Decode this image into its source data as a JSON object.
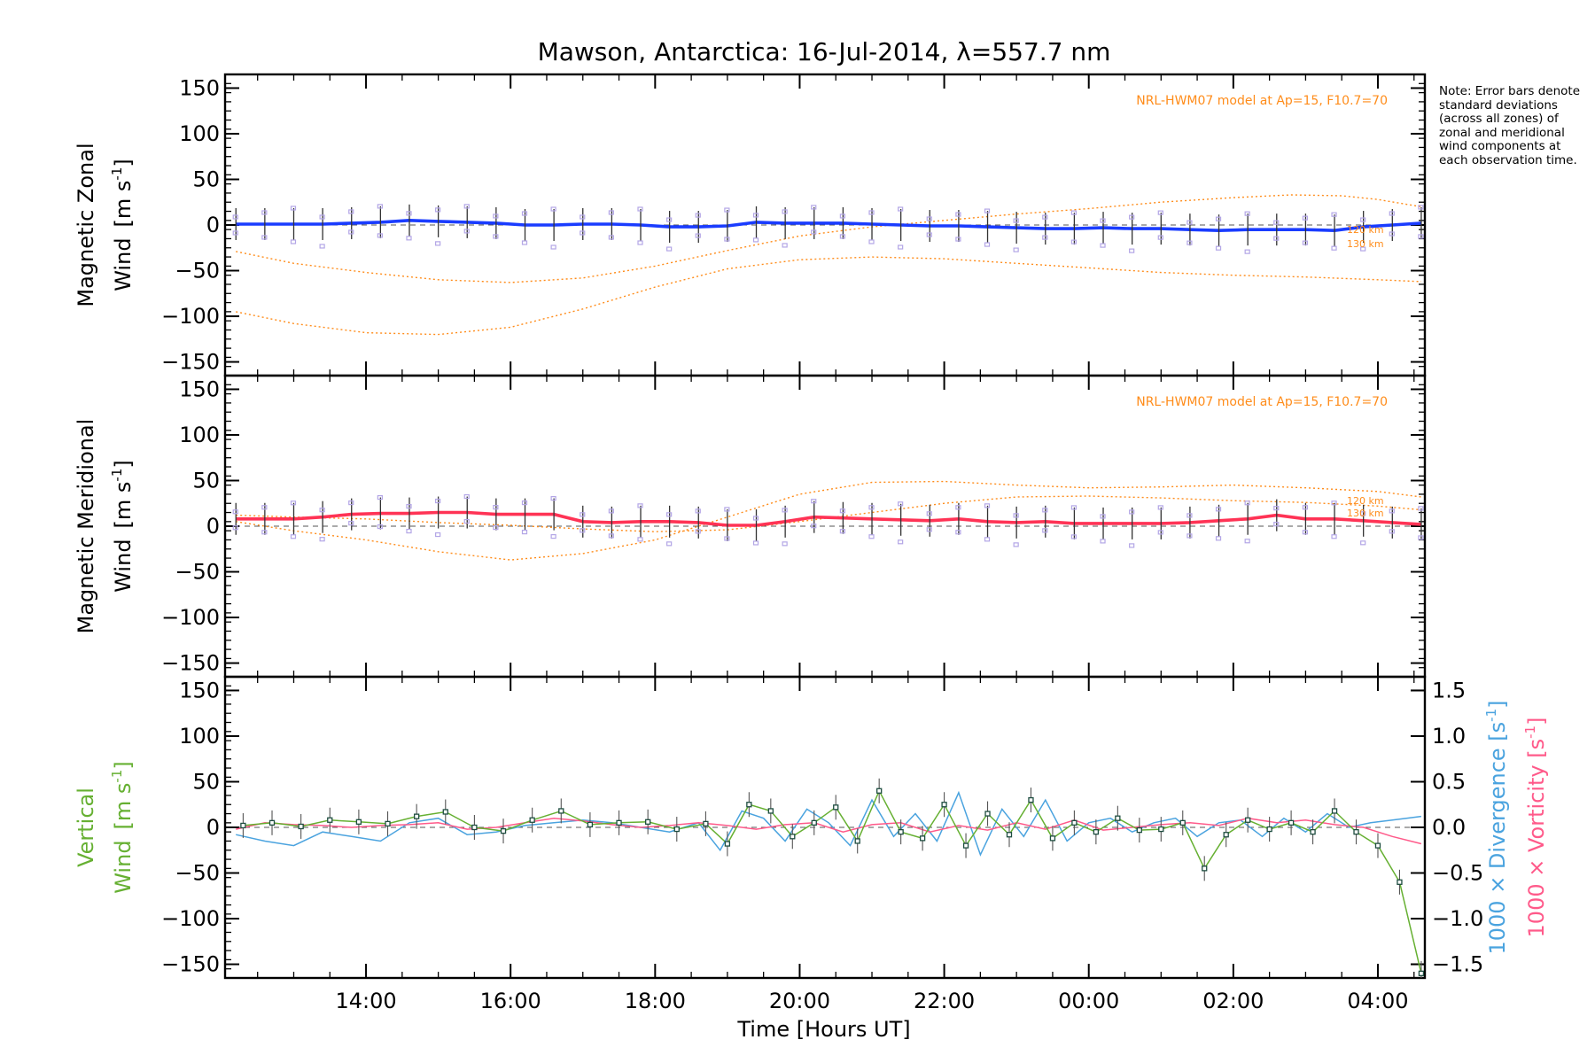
{
  "chart_data": [
    {
      "type": "line",
      "title": "Mawson, Antarctica: 16-Jul-2014, λ=557.7 nm",
      "ylabel": [
        "Magnetic Zonal",
        "Wind"
      ],
      "yunit_base": "[m s",
      "yunit_sup": "-1",
      "yunit_close": "]",
      "ylim": [
        -165,
        165
      ],
      "yticks": [
        -150,
        -100,
        -50,
        0,
        50,
        100,
        150
      ],
      "model_label": "NRL-HWM07 model at Ap=15, F10.7=70",
      "model_altitudes": [
        "120 km",
        "130 km"
      ],
      "series": [
        {
          "name": "mean",
          "color": "#1a3cff",
          "x": [
            12.2,
            12.6,
            13.0,
            13.4,
            13.8,
            14.2,
            14.6,
            15.0,
            15.4,
            15.8,
            16.2,
            16.6,
            17.0,
            17.4,
            17.8,
            18.2,
            18.6,
            19.0,
            19.4,
            19.8,
            20.2,
            20.6,
            21.0,
            21.4,
            21.8,
            22.2,
            22.6,
            23.0,
            23.4,
            23.8,
            24.2,
            24.6,
            25.0,
            25.4,
            25.8,
            26.2,
            26.6,
            27.0,
            27.4,
            27.8,
            28.2,
            28.6
          ],
          "y": [
            1,
            1,
            1,
            1,
            2,
            3,
            5,
            4,
            3,
            2,
            0,
            0,
            1,
            1,
            0,
            -2,
            -2,
            -1,
            3,
            2,
            2,
            2,
            1,
            0,
            -1,
            -1,
            -2,
            -3,
            -4,
            -4,
            -3,
            -4,
            -4,
            -5,
            -6,
            -5,
            -5,
            -5,
            -6,
            -2,
            0,
            2
          ]
        },
        {
          "name": "model 120 km",
          "color": "#ff8c1a",
          "x": [
            12.2,
            13.0,
            14.0,
            15.0,
            16.0,
            17.0,
            18.0,
            19.0,
            20.0,
            21.0,
            22.0,
            23.0,
            24.0,
            25.0,
            26.0,
            26.8,
            27.5,
            28.0,
            28.6
          ],
          "y": [
            -29,
            -42,
            -52,
            -60,
            -63,
            -58,
            -45,
            -28,
            -12,
            -2,
            5,
            12,
            18,
            25,
            30,
            33,
            32,
            28,
            20
          ]
        },
        {
          "name": "model 130 km",
          "color": "#ff8c1a",
          "x": [
            12.2,
            13.0,
            14.0,
            15.0,
            16.0,
            17.0,
            18.0,
            19.0,
            20.0,
            21.0,
            22.0,
            23.0,
            24.0,
            25.0,
            26.0,
            27.0,
            28.0,
            28.6
          ],
          "y": [
            -95,
            -108,
            -118,
            -120,
            -112,
            -92,
            -68,
            -48,
            -38,
            -35,
            -37,
            -42,
            -47,
            -52,
            -55,
            -57,
            -60,
            -62
          ]
        }
      ]
    },
    {
      "type": "line",
      "ylabel": [
        "Magnetic Meridional",
        "Wind"
      ],
      "yunit_base": "[m s",
      "yunit_sup": "-1",
      "yunit_close": "]",
      "ylim": [
        -165,
        165
      ],
      "yticks": [
        -150,
        -100,
        -50,
        0,
        50,
        100,
        150
      ],
      "model_label": "NRL-HWM07 model at Ap=15, F10.7=70",
      "model_altitudes": [
        "120 km",
        "130 km"
      ],
      "series": [
        {
          "name": "mean",
          "color": "#ff3355",
          "x": [
            12.2,
            12.6,
            13.0,
            13.4,
            13.8,
            14.2,
            14.6,
            15.0,
            15.4,
            15.8,
            16.2,
            16.6,
            17.0,
            17.4,
            17.8,
            18.2,
            18.6,
            19.0,
            19.4,
            19.8,
            20.2,
            20.6,
            21.0,
            21.4,
            21.8,
            22.2,
            22.6,
            23.0,
            23.4,
            23.8,
            24.2,
            24.6,
            25.0,
            25.4,
            25.8,
            26.2,
            26.6,
            27.0,
            27.4,
            27.8,
            28.2,
            28.6
          ],
          "y": [
            8,
            8,
            8,
            10,
            13,
            14,
            14,
            15,
            15,
            13,
            13,
            13,
            5,
            4,
            5,
            5,
            4,
            1,
            1,
            5,
            10,
            9,
            8,
            7,
            6,
            8,
            5,
            4,
            5,
            3,
            3,
            3,
            3,
            4,
            6,
            8,
            12,
            8,
            8,
            6,
            4,
            2
          ]
        },
        {
          "name": "model 120 km",
          "color": "#ff8c1a",
          "x": [
            12.2,
            13.0,
            14.0,
            15.0,
            16.0,
            17.0,
            18.0,
            19.0,
            20.0,
            21.0,
            22.0,
            23.0,
            24.0,
            25.0,
            26.0,
            27.0,
            28.0,
            28.6
          ],
          "y": [
            5,
            -5,
            -15,
            -28,
            -37,
            -30,
            -15,
            10,
            35,
            48,
            49,
            45,
            42,
            43,
            45,
            42,
            38,
            32
          ]
        },
        {
          "name": "model 130 km",
          "color": "#ff8c1a",
          "x": [
            12.2,
            13.0,
            14.0,
            15.0,
            16.0,
            17.0,
            18.0,
            19.0,
            20.0,
            21.0,
            22.0,
            23.0,
            24.0,
            25.0,
            26.0,
            27.0,
            28.0,
            28.6
          ],
          "y": [
            12,
            10,
            8,
            4,
            1,
            -3,
            -6,
            -4,
            5,
            15,
            25,
            32,
            33,
            31,
            28,
            26,
            22,
            18
          ]
        }
      ]
    },
    {
      "type": "line",
      "ylabel": [
        "Vertical",
        "Wind"
      ],
      "yunit_base": "[m s",
      "yunit_sup": "-1",
      "yunit_close": "]",
      "ylim": [
        -165,
        165
      ],
      "yticks": [
        -150,
        -100,
        -50,
        0,
        50,
        100,
        150
      ],
      "y2lim": [
        -1.65,
        1.65
      ],
      "y2ticks": [
        -1.5,
        -1.0,
        -0.5,
        0.0,
        0.5,
        1.0,
        1.5
      ],
      "y2labels": [
        "−1.5",
        "−1.0",
        "−0.5",
        "0.0",
        "0.5",
        "1.0",
        "1.5"
      ],
      "y2label_div_base": "1000 × Divergence [s",
      "y2label_vort_base": "1000 × Vorticity [s",
      "y2label_sup": "-1",
      "y2label_close": "]",
      "xlabel": "Time [Hours UT]",
      "xticks": [
        14,
        16,
        18,
        20,
        22,
        24,
        26,
        28
      ],
      "xticklabels": [
        "14:00",
        "16:00",
        "18:00",
        "20:00",
        "22:00",
        "00:00",
        "02:00",
        "04:00"
      ],
      "xlim": [
        12.05,
        28.65
      ],
      "series": [
        {
          "name": "vertical wind",
          "color": "#66b032",
          "x": [
            12.3,
            12.7,
            13.1,
            13.5,
            13.9,
            14.3,
            14.7,
            15.1,
            15.5,
            15.9,
            16.3,
            16.7,
            17.1,
            17.5,
            17.9,
            18.3,
            18.7,
            19.0,
            19.3,
            19.6,
            19.9,
            20.2,
            20.5,
            20.8,
            21.1,
            21.4,
            21.7,
            22.0,
            22.3,
            22.6,
            22.9,
            23.2,
            23.5,
            23.8,
            24.1,
            24.4,
            24.7,
            25.0,
            25.3,
            25.6,
            25.9,
            26.2,
            26.5,
            26.8,
            27.1,
            27.4,
            27.7,
            28.0,
            28.3,
            28.6
          ],
          "y": [
            2,
            5,
            1,
            8,
            6,
            4,
            12,
            17,
            0,
            -4,
            8,
            18,
            3,
            5,
            6,
            -2,
            4,
            -18,
            25,
            18,
            -10,
            5,
            22,
            -15,
            40,
            -5,
            -12,
            25,
            -20,
            15,
            -8,
            30,
            -12,
            5,
            -5,
            10,
            -3,
            -2,
            5,
            -45,
            -8,
            8,
            -2,
            5,
            -5,
            18,
            -5,
            -20,
            -60,
            -160
          ]
        },
        {
          "name": "1000 x divergence",
          "color": "#4aa3df",
          "x": [
            12.2,
            12.6,
            13.0,
            13.4,
            13.8,
            14.2,
            14.6,
            15.0,
            15.4,
            15.8,
            16.2,
            16.6,
            17.0,
            17.4,
            17.8,
            18.2,
            18.6,
            18.9,
            19.2,
            19.5,
            19.8,
            20.1,
            20.4,
            20.7,
            21.0,
            21.3,
            21.6,
            21.9,
            22.2,
            22.5,
            22.8,
            23.1,
            23.4,
            23.7,
            24.0,
            24.3,
            24.6,
            24.9,
            25.2,
            25.5,
            25.8,
            26.1,
            26.4,
            26.7,
            27.0,
            27.3,
            27.6,
            27.9,
            28.2,
            28.6
          ],
          "y": [
            -0.08,
            -0.15,
            -0.2,
            -0.05,
            -0.1,
            -0.15,
            0.05,
            0.1,
            -0.08,
            -0.05,
            0.02,
            0.05,
            0.08,
            0.05,
            0.0,
            -0.05,
            0.05,
            -0.25,
            0.18,
            0.1,
            -0.15,
            0.2,
            0.05,
            -0.2,
            0.3,
            -0.1,
            0.15,
            -0.15,
            0.38,
            -0.3,
            0.2,
            -0.1,
            0.3,
            -0.15,
            0.05,
            0.1,
            -0.05,
            0.05,
            0.1,
            -0.1,
            0.05,
            0.08,
            -0.1,
            0.1,
            -0.05,
            0.15,
            0.0,
            0.05,
            0.08,
            0.12
          ]
        },
        {
          "name": "1000 x vorticity",
          "color": "#ff5a8a",
          "x": [
            12.2,
            12.6,
            13.0,
            13.4,
            13.8,
            14.2,
            14.6,
            15.0,
            15.4,
            15.8,
            16.2,
            16.6,
            17.0,
            17.4,
            17.8,
            18.2,
            18.6,
            19.0,
            19.4,
            19.8,
            20.2,
            20.6,
            21.0,
            21.4,
            21.8,
            22.2,
            22.6,
            23.0,
            23.4,
            23.8,
            24.2,
            24.6,
            25.0,
            25.4,
            25.8,
            26.2,
            26.6,
            27.0,
            27.4,
            27.8,
            28.2,
            28.6
          ],
          "y": [
            -0.02,
            0.05,
            0.03,
            0.02,
            0.0,
            0.02,
            0.03,
            0.05,
            -0.02,
            0.0,
            0.05,
            0.1,
            0.07,
            0.03,
            0.0,
            0.02,
            0.05,
            0.02,
            -0.02,
            0.03,
            0.05,
            -0.05,
            0.03,
            0.05,
            -0.05,
            0.02,
            -0.03,
            0.05,
            -0.02,
            0.08,
            -0.03,
            0.0,
            0.03,
            0.05,
            0.02,
            0.1,
            0.05,
            0.08,
            0.03,
            0.0,
            -0.1,
            -0.18
          ]
        }
      ]
    }
  ],
  "note": "Note: Error bars denote standard deviations (across all zones) of zonal and meridional wind components at each observation time."
}
